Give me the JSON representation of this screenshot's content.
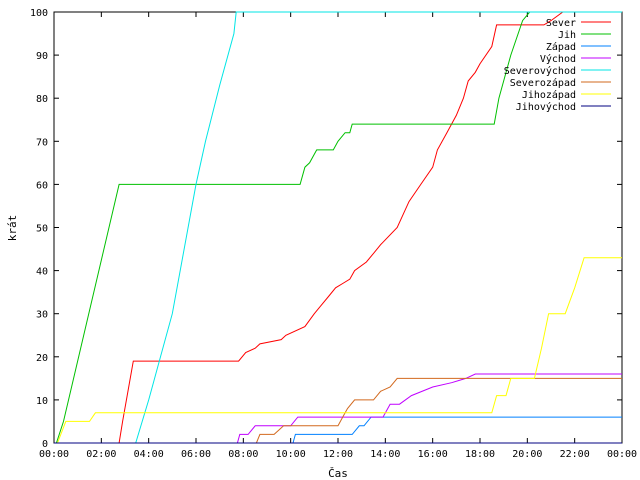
{
  "chart_data": {
    "type": "line",
    "xlabel": "Čas",
    "ylabel": "krát",
    "ylim": [
      0,
      100
    ],
    "xlim": [
      0,
      24
    ],
    "x_unit": "hours",
    "grid": false,
    "legend_placement": "top-right",
    "x_ticks": [
      {
        "value": 0,
        "label": "00:00"
      },
      {
        "value": 2,
        "label": "02:00"
      },
      {
        "value": 4,
        "label": "04:00"
      },
      {
        "value": 6,
        "label": "06:00"
      },
      {
        "value": 8,
        "label": "08:00"
      },
      {
        "value": 10,
        "label": "10:00"
      },
      {
        "value": 12,
        "label": "12:00"
      },
      {
        "value": 14,
        "label": "14:00"
      },
      {
        "value": 16,
        "label": "16:00"
      },
      {
        "value": 18,
        "label": "18:00"
      },
      {
        "value": 20,
        "label": "20:00"
      },
      {
        "value": 22,
        "label": "22:00"
      },
      {
        "value": 24,
        "label": "00:00"
      }
    ],
    "y_ticks": [
      0,
      10,
      20,
      30,
      40,
      50,
      60,
      70,
      80,
      90,
      100
    ],
    "series": [
      {
        "name": "Sever",
        "color": "#ff0000",
        "x": [
          0,
          2.75,
          2.9,
          3.35,
          7.8,
          8.1,
          8.5,
          8.7,
          9.6,
          9.8,
          10.6,
          11.0,
          11.3,
          11.6,
          11.9,
          12.2,
          12.5,
          12.7,
          13.2,
          13.5,
          13.8,
          14.5,
          15.0,
          15.5,
          16.0,
          16.2,
          16.6,
          17.0,
          17.3,
          17.5,
          17.8,
          18.0,
          18.5,
          18.7,
          20.7,
          21.0,
          21.5,
          24
        ],
        "y": [
          0,
          0,
          5,
          19,
          19,
          21,
          22,
          23,
          24,
          25,
          27,
          30,
          32,
          34,
          36,
          37,
          38,
          40,
          42,
          44,
          46,
          50,
          56,
          60,
          64,
          68,
          72,
          76,
          80,
          84,
          86,
          88,
          92,
          97,
          97,
          98,
          100,
          100
        ]
      },
      {
        "name": "Jih",
        "color": "#00c000",
        "x": [
          0,
          0.1,
          0.4,
          2.75,
          10.4,
          10.6,
          10.8,
          11.1,
          11.8,
          12.0,
          12.3,
          12.5,
          12.6,
          12.8,
          18.6,
          18.8,
          19.3,
          19.8,
          20.1,
          24
        ],
        "y": [
          0,
          0,
          5,
          60,
          60,
          64,
          65,
          68,
          68,
          70,
          72,
          72,
          74,
          74,
          74,
          80,
          90,
          98,
          100,
          100
        ]
      },
      {
        "name": "Západ",
        "color": "#0080ff",
        "x": [
          0,
          10.1,
          10.2,
          12.6,
          12.9,
          13.1,
          13.4,
          24
        ],
        "y": [
          0,
          0,
          2,
          2,
          4,
          4,
          6,
          6
        ]
      },
      {
        "name": "Východ",
        "color": "#c000ff",
        "x": [
          0,
          7.75,
          7.85,
          8.2,
          8.5,
          10.0,
          10.3,
          13.9,
          14.2,
          14.6,
          15.1,
          16.0,
          16.8,
          17.4,
          17.8,
          24
        ],
        "y": [
          0,
          0,
          2,
          2,
          4,
          4,
          6,
          6,
          9,
          9,
          11,
          13,
          14,
          15,
          16,
          16
        ]
      },
      {
        "name": "Severovýchod",
        "color": "#00e5e5",
        "x": [
          0,
          3.45,
          4.0,
          4.5,
          5.0,
          6.0,
          6.4,
          7.0,
          7.6,
          7.7,
          24
        ],
        "y": [
          0,
          0,
          10,
          20,
          30,
          60,
          70,
          83,
          95,
          100,
          100
        ]
      },
      {
        "name": "Severozápad",
        "color": "#d2691e",
        "x": [
          0,
          8.55,
          8.7,
          9.3,
          9.7,
          12.0,
          12.2,
          12.4,
          12.7,
          13.5,
          13.8,
          14.2,
          14.5,
          24
        ],
        "y": [
          0,
          0,
          2,
          2,
          4,
          4,
          6,
          8,
          10,
          10,
          12,
          13,
          15,
          15
        ]
      },
      {
        "name": "Jihozápad",
        "color": "#ffff00",
        "x": [
          0,
          0.15,
          0.5,
          1.5,
          1.75,
          18.5,
          18.7,
          19.1,
          19.3,
          20.3,
          20.6,
          20.9,
          21.6,
          22.0,
          22.4,
          24
        ],
        "y": [
          0,
          0,
          5,
          5,
          7,
          7,
          11,
          11,
          15,
          15,
          22,
          30,
          30,
          36,
          43,
          43
        ]
      },
      {
        "name": "Jihovýchod",
        "color": "#000080",
        "x": [
          0,
          24
        ],
        "y": [
          0,
          0
        ]
      }
    ]
  }
}
